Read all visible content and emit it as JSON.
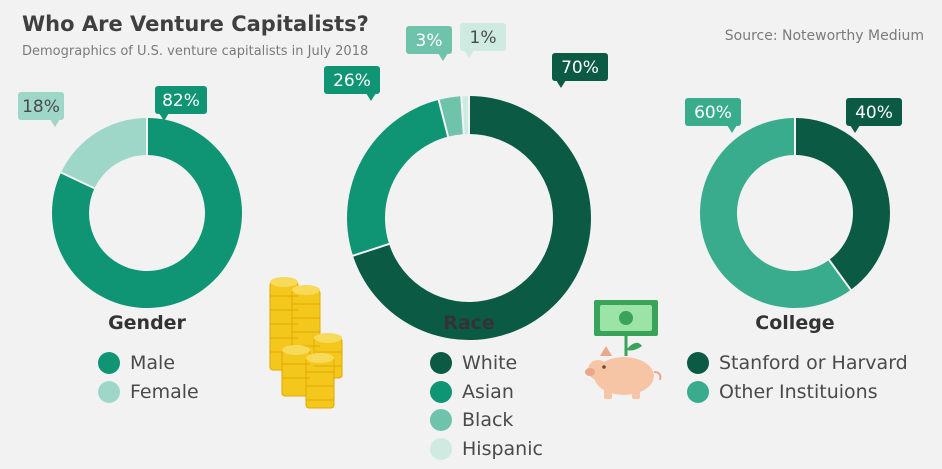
{
  "header": {
    "title": "Who Are Venture Capitalists?",
    "subtitle": "Demographics of U.S. venture capitalists in July 2018",
    "source": "Source: Noteworthy Medium"
  },
  "colors": {
    "dark_green": "#0b5a44",
    "green": "#0f9574",
    "mid_green": "#3aac8e",
    "light_green": "#9ed7c7",
    "pale_green": "#cfeae1",
    "gold": "#f3c71b",
    "pig_pink": "#f6c5a5"
  },
  "icons": [
    "coin-stack-icon",
    "piggy-bank-icon"
  ],
  "chart_data": [
    {
      "type": "pie",
      "title": "Gender",
      "categories": [
        "Male",
        "Female"
      ],
      "values": [
        82,
        18
      ],
      "labels": [
        "82%",
        "18%"
      ],
      "colors": [
        "#0f9574",
        "#9ed7c7"
      ],
      "legend_position": "bottom"
    },
    {
      "type": "pie",
      "title": "Race",
      "categories": [
        "White",
        "Asian",
        "Black",
        "Hispanic"
      ],
      "values": [
        70,
        26,
        3,
        1
      ],
      "labels": [
        "70%",
        "26%",
        "3%",
        "1%"
      ],
      "colors": [
        "#0b5a44",
        "#0f9574",
        "#6ec3aa",
        "#cfeae1"
      ],
      "legend_position": "bottom"
    },
    {
      "type": "pie",
      "title": "College",
      "categories": [
        "Stanford or Harvard",
        "Other Instituions"
      ],
      "values": [
        40,
        60
      ],
      "labels": [
        "40%",
        "60%"
      ],
      "colors": [
        "#0b5a44",
        "#3aac8e"
      ],
      "legend_position": "bottom"
    }
  ]
}
